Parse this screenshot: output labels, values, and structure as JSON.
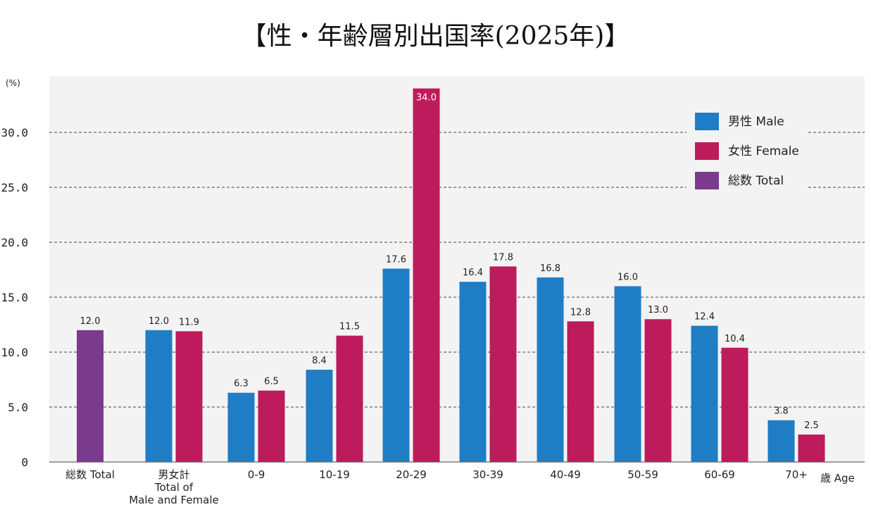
{
  "chart_data": {
    "type": "bar",
    "title": "【性・年齢層別出国率(2025年)】",
    "ylabel": "(%)",
    "xlabel": "歳 Age",
    "ylim": [
      0,
      35
    ],
    "yticks": [
      "0",
      "5.0",
      "10.0",
      "15.0",
      "20.0",
      "25.0",
      "30.0"
    ],
    "grid": "horizontal dashed",
    "legend_position": "top-right",
    "categories": [
      [
        "総数 Total"
      ],
      [
        "男女計",
        "Total of",
        "Male and Female"
      ],
      [
        "0-9"
      ],
      [
        "10-19"
      ],
      [
        "20-29"
      ],
      [
        "30-39"
      ],
      [
        "40-49"
      ],
      [
        "50-59"
      ],
      [
        "60-69"
      ],
      [
        "70+"
      ]
    ],
    "series": [
      {
        "name": "男性 Male",
        "color": "#1f7dc5",
        "values": [
          null,
          12.0,
          6.3,
          8.4,
          17.6,
          16.4,
          16.8,
          16.0,
          12.4,
          3.8
        ],
        "labels": [
          null,
          "12.0",
          "6.3",
          "8.4",
          "17.6",
          "16.4",
          "16.8",
          "16.0",
          "12.4",
          "3.8"
        ]
      },
      {
        "name": "女性 Female",
        "color": "#bd1b5b",
        "values": [
          null,
          11.9,
          6.5,
          11.5,
          34.0,
          17.8,
          12.8,
          13.0,
          10.4,
          2.5
        ],
        "labels": [
          null,
          "11.9",
          "6.5",
          "11.5",
          "34.0",
          "17.8",
          "12.8",
          "13.0",
          "10.4",
          "2.5"
        ]
      },
      {
        "name": "総数 Total",
        "color": "#7a3b8c",
        "values": [
          12.0,
          null,
          null,
          null,
          null,
          null,
          null,
          null,
          null,
          null
        ],
        "labels": [
          "12.0",
          null,
          null,
          null,
          null,
          null,
          null,
          null,
          null,
          null
        ]
      }
    ]
  }
}
